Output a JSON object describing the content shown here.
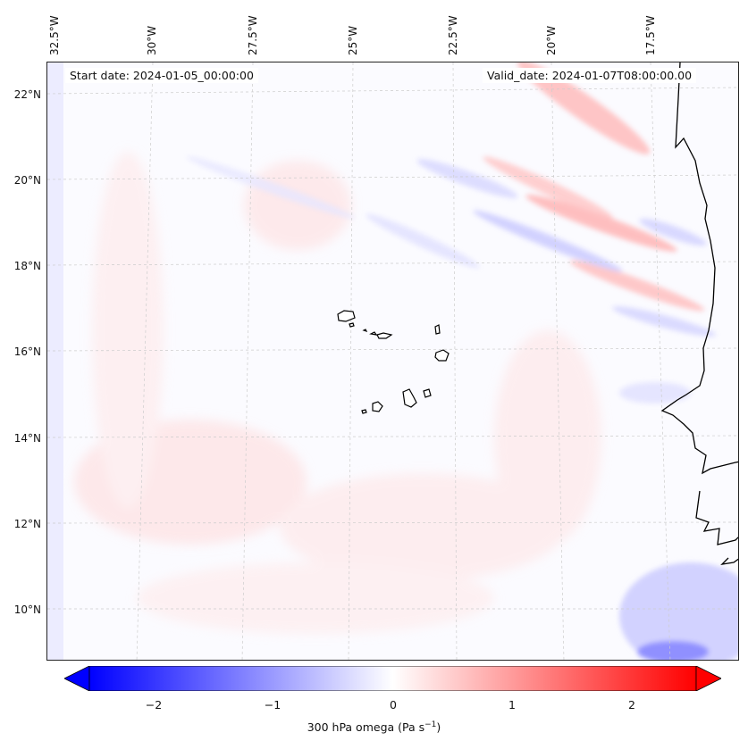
{
  "map": {
    "start_date": "Start date: 2024-01-05_00:00:00",
    "valid_date": "Valid_date: 2024-01-07T08:00:00.00",
    "lon_labels": [
      "32.5°W",
      "30°W",
      "27.5°W",
      "25°W",
      "22.5°W",
      "20°W",
      "17.5°W"
    ],
    "lat_labels": [
      "22°N",
      "20°N",
      "18°N",
      "16°N",
      "14°N",
      "12°N",
      "10°N"
    ],
    "colors": {
      "negative": "#0000ff",
      "neutral": "#ffffff",
      "positive": "#ff0000",
      "coast": "#000000"
    }
  },
  "colorbar": {
    "title": "300 hPa omega (Pa s",
    "unit_exponent": "−1",
    "title_close": ")",
    "ticks": [
      "−2",
      "−1",
      "0",
      "1",
      "2"
    ],
    "range": [
      -2.75,
      2.75
    ]
  }
}
